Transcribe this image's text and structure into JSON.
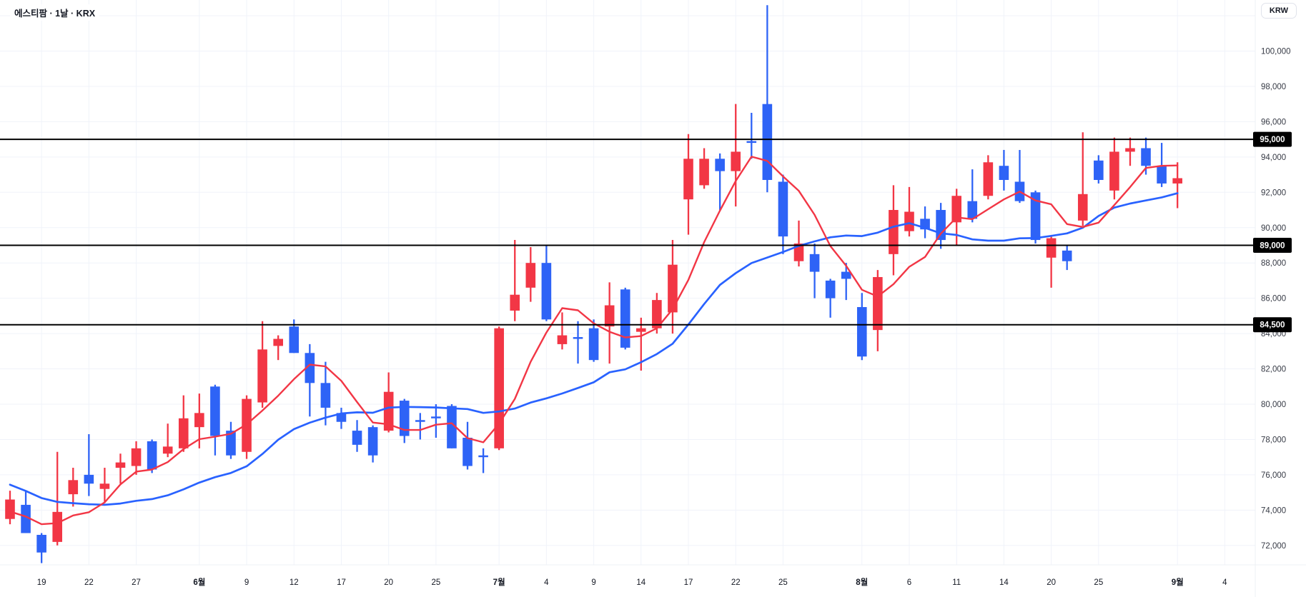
{
  "app": {
    "title": "에스티팜 · 1날 · KRX",
    "symbol": "에스티팜",
    "interval": "1날",
    "exchange": "KRX",
    "currency_button": "KRW"
  },
  "colors": {
    "up": "#f23645",
    "down": "#2e63f6",
    "ma_fast": "#f23645",
    "ma_slow": "#2962ff",
    "grid": "#f0f3fa",
    "axis_text": "#363a45",
    "time_text": "#131722",
    "separator": "#eef0f4",
    "hline": "#000000",
    "badge_bg": "#000000",
    "badge_text": "#ffffff"
  },
  "chart_data": {
    "type": "candlestick",
    "title": "에스티팜 · 1날 · KRX",
    "unit": "KRW",
    "legend_position": "top-left",
    "grid": "on",
    "y_axis": {
      "min": 72000,
      "max": 102000,
      "tick_step": 2000,
      "tick_labels": [
        "100,000",
        "98,000",
        "96,000",
        "94,000",
        "92,000",
        "90,000",
        "88,000",
        "86,000",
        "84,000",
        "82,000",
        "80,000",
        "78,000",
        "76,000",
        "74,000",
        "72,000"
      ]
    },
    "x_axis": {
      "tick_labels": [
        {
          "i": 3,
          "t": "19"
        },
        {
          "i": 6,
          "t": "22"
        },
        {
          "i": 9,
          "t": "27"
        },
        {
          "i": 13,
          "t": "6월",
          "b": 1
        },
        {
          "i": 16,
          "t": "9"
        },
        {
          "i": 19,
          "t": "12"
        },
        {
          "i": 22,
          "t": "17"
        },
        {
          "i": 25,
          "t": "20"
        },
        {
          "i": 28,
          "t": "25"
        },
        {
          "i": 32,
          "t": "7월",
          "b": 1
        },
        {
          "i": 35,
          "t": "4"
        },
        {
          "i": 38,
          "t": "9"
        },
        {
          "i": 41,
          "t": "14"
        },
        {
          "i": 44,
          "t": "17"
        },
        {
          "i": 47,
          "t": "22"
        },
        {
          "i": 50,
          "t": "25"
        },
        {
          "i": 55,
          "t": "8월",
          "b": 1
        },
        {
          "i": 58,
          "t": "6"
        },
        {
          "i": 61,
          "t": "11"
        },
        {
          "i": 64,
          "t": "14"
        },
        {
          "i": 67,
          "t": "20"
        },
        {
          "i": 70,
          "t": "25"
        },
        {
          "i": 75,
          "t": "9월",
          "b": 1
        },
        {
          "i": 78,
          "t": "4"
        }
      ]
    },
    "horizontal_lines": [
      {
        "price": 95000,
        "label": "95,000"
      },
      {
        "price": 89000,
        "label": "89,000"
      },
      {
        "price": 84500,
        "label": "84,500"
      }
    ],
    "moving_averages": [
      {
        "name": "fast",
        "period": 5,
        "color": "#f23645"
      },
      {
        "name": "slow",
        "period": 15,
        "color": "#2962ff"
      }
    ],
    "ma_warmup_closes": [
      78000,
      77600,
      77200,
      76800,
      76400,
      76000,
      75600,
      75200,
      74800,
      74400,
      74100,
      73800,
      73600,
      73500
    ],
    "candles": [
      [
        73500,
        75100,
        73200,
        74600
      ],
      [
        74300,
        75100,
        72700,
        72700
      ],
      [
        72600,
        72700,
        71000,
        71600
      ],
      [
        72200,
        77300,
        72000,
        73900
      ],
      [
        74900,
        76400,
        74200,
        75700
      ],
      [
        76000,
        78300,
        74800,
        75500
      ],
      [
        75200,
        76400,
        74400,
        75500
      ],
      [
        76400,
        77200,
        75500,
        76700
      ],
      [
        76500,
        77900,
        76000,
        77500
      ],
      [
        77900,
        78000,
        76100,
        76300
      ],
      [
        77200,
        78900,
        77000,
        77600
      ],
      [
        77500,
        80500,
        77300,
        79200
      ],
      [
        78700,
        80600,
        77500,
        79500
      ],
      [
        81000,
        81100,
        77100,
        78200
      ],
      [
        78500,
        79000,
        76900,
        77100
      ],
      [
        77300,
        80500,
        76900,
        80300
      ],
      [
        80100,
        84700,
        79800,
        83100
      ],
      [
        83300,
        83900,
        82500,
        83700
      ],
      [
        84400,
        84800,
        82900,
        82900
      ],
      [
        82900,
        83400,
        79300,
        81200
      ],
      [
        81200,
        82400,
        78800,
        79800
      ],
      [
        79500,
        79800,
        78600,
        79000
      ],
      [
        78500,
        79100,
        77300,
        77700
      ],
      [
        78700,
        78800,
        76700,
        77100
      ],
      [
        78500,
        81800,
        78400,
        80700
      ],
      [
        80200,
        80300,
        77800,
        78200
      ],
      [
        79100,
        79500,
        78000,
        79000
      ],
      [
        79300,
        80000,
        78100,
        79200
      ],
      [
        79900,
        80000,
        77500,
        77500
      ],
      [
        78100,
        79000,
        76300,
        76500
      ],
      [
        77100,
        77500,
        76100,
        77000
      ],
      [
        77500,
        84400,
        77400,
        84300
      ],
      [
        85300,
        89300,
        84700,
        86200
      ],
      [
        86600,
        88900,
        85800,
        88000
      ],
      [
        88000,
        89000,
        84700,
        84800
      ],
      [
        83400,
        85200,
        83100,
        83900
      ],
      [
        83800,
        84700,
        82300,
        83700
      ],
      [
        84300,
        84800,
        82400,
        82500
      ],
      [
        84400,
        86900,
        82300,
        85600
      ],
      [
        86500,
        86600,
        83100,
        83200
      ],
      [
        84100,
        84900,
        81900,
        84300
      ],
      [
        84300,
        86300,
        84000,
        85900
      ],
      [
        85200,
        89300,
        84000,
        87900
      ],
      [
        91600,
        95300,
        89600,
        93900
      ],
      [
        92400,
        94500,
        92200,
        93900
      ],
      [
        93900,
        94200,
        91000,
        93200
      ],
      [
        93200,
        97000,
        91200,
        94300
      ],
      [
        94900,
        96500,
        93900,
        94800
      ],
      [
        97000,
        102600,
        92000,
        92700
      ],
      [
        92600,
        93000,
        88500,
        89500
      ],
      [
        88100,
        90400,
        87800,
        89100
      ],
      [
        88500,
        89100,
        86000,
        87500
      ],
      [
        87000,
        87100,
        84900,
        86000
      ],
      [
        87500,
        88000,
        85900,
        87100
      ],
      [
        85500,
        86300,
        82500,
        82700
      ],
      [
        84200,
        87600,
        83000,
        87200
      ],
      [
        88500,
        92400,
        87300,
        91000
      ],
      [
        89800,
        92300,
        89500,
        90900
      ],
      [
        90500,
        91200,
        89400,
        89900
      ],
      [
        91000,
        91400,
        88800,
        89300
      ],
      [
        90300,
        92200,
        89000,
        91800
      ],
      [
        91500,
        93300,
        90300,
        90500
      ],
      [
        91800,
        94100,
        91600,
        93700
      ],
      [
        93500,
        94400,
        92100,
        92700
      ],
      [
        92600,
        94400,
        91400,
        91500
      ],
      [
        92000,
        92100,
        89100,
        89300
      ],
      [
        88300,
        89500,
        86600,
        89400
      ],
      [
        88700,
        89000,
        87600,
        88100
      ],
      [
        90400,
        95400,
        90100,
        91900
      ],
      [
        93800,
        94100,
        92500,
        92700
      ],
      [
        92100,
        95100,
        91600,
        94300
      ],
      [
        94300,
        95100,
        93500,
        94500
      ],
      [
        94500,
        95100,
        93000,
        93500
      ],
      [
        93500,
        94800,
        92300,
        92500
      ],
      [
        92500,
        93700,
        91100,
        92800
      ]
    ]
  }
}
